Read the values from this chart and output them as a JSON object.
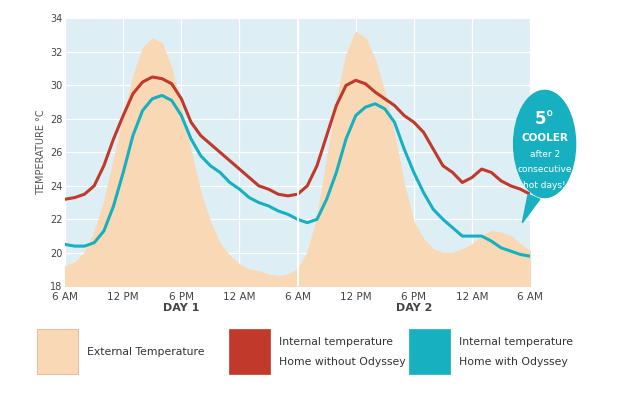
{
  "fig_width": 6.2,
  "fig_height": 4.09,
  "bg_color": "#ffffff",
  "plot_bg_color": "#ddeef5",
  "ylim": [
    18,
    34
  ],
  "yticks": [
    18,
    20,
    22,
    24,
    26,
    28,
    30,
    32,
    34
  ],
  "ylabel": "TEMPERATURE °C",
  "xlabel_day1": "DAY 1",
  "xlabel_day2": "DAY 2",
  "xtick_labels": [
    "6 AM",
    "12 PM",
    "6 PM",
    "12 AM",
    "6 AM",
    "12 PM",
    "6 PM",
    "12 AM",
    "6 AM"
  ],
  "xtick_positions": [
    0,
    6,
    12,
    18,
    24,
    30,
    36,
    42,
    48
  ],
  "external_color": "#f9d9b5",
  "line_no_odyssey_color": "#c0392b",
  "line_with_odyssey_color": "#17b0c0",
  "line_width": 2.2,
  "annotation_bg_color": "#17b0c0",
  "x": [
    0,
    1,
    2,
    3,
    4,
    5,
    6,
    7,
    8,
    9,
    10,
    11,
    12,
    13,
    14,
    15,
    16,
    17,
    18,
    19,
    20,
    21,
    22,
    23,
    24,
    25,
    26,
    27,
    28,
    29,
    30,
    31,
    32,
    33,
    34,
    35,
    36,
    37,
    38,
    39,
    40,
    41,
    42,
    43,
    44,
    45,
    46,
    47,
    48
  ],
  "external_temp": [
    19.2,
    19.4,
    20.0,
    21.2,
    23.0,
    25.5,
    28.0,
    30.5,
    32.2,
    32.8,
    32.5,
    31.0,
    28.5,
    26.0,
    23.5,
    21.8,
    20.5,
    19.8,
    19.3,
    19.0,
    18.9,
    18.7,
    18.6,
    18.7,
    19.0,
    20.0,
    22.0,
    25.5,
    29.0,
    31.8,
    33.2,
    32.8,
    31.5,
    29.5,
    27.0,
    24.0,
    21.8,
    20.8,
    20.2,
    20.0,
    20.0,
    20.2,
    20.5,
    21.0,
    21.3,
    21.2,
    21.0,
    20.5,
    20.1
  ],
  "internal_no_odyssey": [
    23.2,
    23.3,
    23.5,
    24.0,
    25.2,
    26.8,
    28.2,
    29.5,
    30.2,
    30.5,
    30.4,
    30.1,
    29.2,
    27.8,
    27.0,
    26.5,
    26.0,
    25.5,
    25.0,
    24.5,
    24.0,
    23.8,
    23.5,
    23.4,
    23.5,
    24.0,
    25.2,
    27.0,
    28.8,
    30.0,
    30.3,
    30.1,
    29.6,
    29.2,
    28.8,
    28.2,
    27.8,
    27.2,
    26.2,
    25.2,
    24.8,
    24.2,
    24.5,
    25.0,
    24.8,
    24.3,
    24.0,
    23.8,
    23.5
  ],
  "internal_with_odyssey": [
    20.5,
    20.4,
    20.4,
    20.6,
    21.3,
    22.8,
    24.8,
    27.0,
    28.5,
    29.2,
    29.4,
    29.1,
    28.2,
    26.8,
    25.8,
    25.2,
    24.8,
    24.2,
    23.8,
    23.3,
    23.0,
    22.8,
    22.5,
    22.3,
    22.0,
    21.8,
    22.0,
    23.2,
    24.8,
    26.8,
    28.2,
    28.7,
    28.9,
    28.6,
    27.8,
    26.2,
    24.8,
    23.6,
    22.6,
    22.0,
    21.5,
    21.0,
    21.0,
    21.0,
    20.7,
    20.3,
    20.1,
    19.9,
    19.8
  ],
  "legend_external_label1": "External Temperature",
  "legend_external_label2": "",
  "legend_no_odyssey_label1": "Internal temperature",
  "legend_no_odyssey_label2": "Home without Odyssey",
  "legend_with_odyssey_label1": "Internal temperature",
  "legend_with_odyssey_label2": "Home with Odyssey"
}
